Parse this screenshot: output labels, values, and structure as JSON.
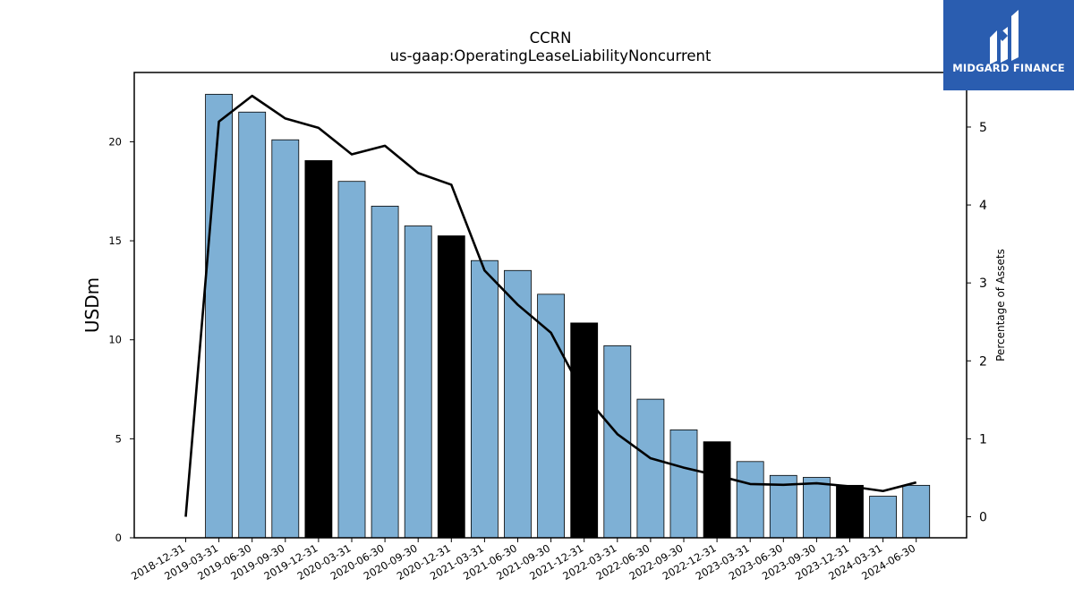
{
  "chart_data": {
    "type": "bar",
    "title": "CCRN",
    "subtitle": "us-gaap:OperatingLeaseLiabilityNoncurrent",
    "ylabel": "USDm",
    "y2label": "Percentage of Assets",
    "ylim": [
      0,
      23.5
    ],
    "y2lim": [
      -0.27,
      5.7
    ],
    "yticks": [
      0,
      5,
      10,
      15,
      20
    ],
    "y2ticks": [
      0,
      1,
      2,
      3,
      4,
      5
    ],
    "categories": [
      "2018-12-31",
      "2019-03-31",
      "2019-06-30",
      "2019-09-30",
      "2019-12-31",
      "2020-03-31",
      "2020-06-30",
      "2020-09-30",
      "2020-12-31",
      "2021-03-31",
      "2021-06-30",
      "2021-09-30",
      "2021-12-31",
      "2022-03-31",
      "2022-06-30",
      "2022-09-30",
      "2022-12-31",
      "2023-03-31",
      "2023-06-30",
      "2023-09-30",
      "2023-12-31",
      "2024-03-31",
      "2024-06-30"
    ],
    "series": [
      {
        "type": "bar",
        "axis": "left",
        "values": [
          null,
          22.4,
          21.5,
          20.1,
          19.05,
          18.0,
          16.75,
          15.75,
          15.25,
          14.0,
          13.5,
          12.3,
          10.85,
          9.7,
          7.0,
          5.45,
          4.85,
          3.85,
          3.15,
          3.05,
          2.65,
          2.1,
          2.65
        ],
        "colors": [
          "#7eb0d5",
          "#7eb0d5",
          "#7eb0d5",
          "#7eb0d5",
          "#000000",
          "#7eb0d5",
          "#7eb0d5",
          "#7eb0d5",
          "#000000",
          "#7eb0d5",
          "#7eb0d5",
          "#7eb0d5",
          "#000000",
          "#7eb0d5",
          "#7eb0d5",
          "#7eb0d5",
          "#000000",
          "#7eb0d5",
          "#7eb0d5",
          "#7eb0d5",
          "#000000",
          "#7eb0d5",
          "#7eb0d5"
        ]
      },
      {
        "type": "line",
        "axis": "right",
        "color": "#000000",
        "values": [
          0.0,
          5.07,
          5.4,
          5.11,
          4.99,
          4.65,
          4.76,
          4.41,
          4.26,
          3.16,
          2.72,
          2.36,
          1.56,
          1.06,
          0.75,
          0.63,
          0.53,
          0.42,
          0.41,
          0.43,
          0.39,
          0.33,
          0.44
        ]
      }
    ],
    "grid": false,
    "legend": "none"
  },
  "logo": {
    "text": "MIDGARD FINANCE",
    "bg_color": "#2a5db0"
  }
}
